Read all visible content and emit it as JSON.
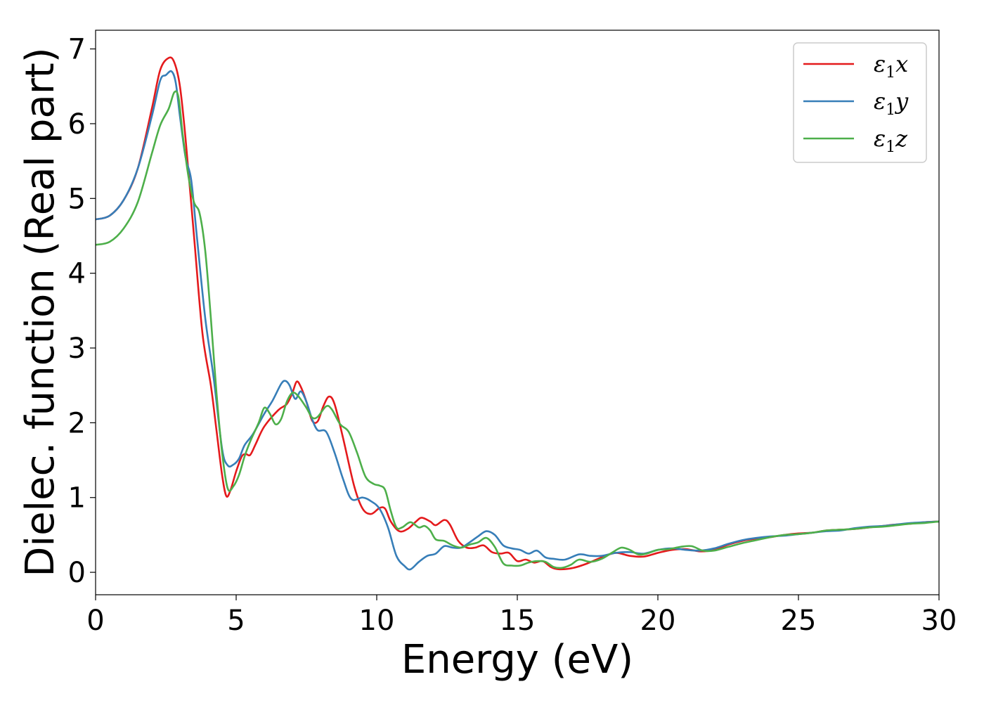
{
  "chart_data": {
    "type": "line",
    "title": "",
    "xlabel": "Energy (eV)",
    "ylabel": "Dielec. function (Real part)",
    "xlim": [
      0,
      30
    ],
    "ylim": [
      -0.3,
      7.25
    ],
    "xticks": [
      0,
      5,
      10,
      15,
      20,
      25,
      30
    ],
    "yticks": [
      0,
      1,
      2,
      3,
      4,
      5,
      6,
      7
    ],
    "grid": false,
    "legend_position": "top-right",
    "series": [
      {
        "name": "ε1x",
        "legend_base": "ε",
        "legend_sub": "1",
        "legend_var": "x",
        "color": "#e41a1c",
        "points": [
          [
            0,
            4.72
          ],
          [
            0.5,
            4.77
          ],
          [
            1,
            4.98
          ],
          [
            1.5,
            5.4
          ],
          [
            2,
            6.2
          ],
          [
            2.3,
            6.72
          ],
          [
            2.6,
            6.88
          ],
          [
            2.8,
            6.82
          ],
          [
            3,
            6.5
          ],
          [
            3.2,
            5.8
          ],
          [
            3.5,
            4.5
          ],
          [
            3.8,
            3.2
          ],
          [
            4.1,
            2.5
          ],
          [
            4.3,
            1.9
          ],
          [
            4.5,
            1.3
          ],
          [
            4.65,
            1.02
          ],
          [
            4.8,
            1.1
          ],
          [
            5,
            1.35
          ],
          [
            5.2,
            1.55
          ],
          [
            5.35,
            1.58
          ],
          [
            5.5,
            1.57
          ],
          [
            5.7,
            1.72
          ],
          [
            6,
            1.95
          ],
          [
            6.5,
            2.17
          ],
          [
            6.8,
            2.25
          ],
          [
            7,
            2.4
          ],
          [
            7.15,
            2.55
          ],
          [
            7.3,
            2.48
          ],
          [
            7.5,
            2.28
          ],
          [
            7.7,
            2.03
          ],
          [
            7.9,
            2.02
          ],
          [
            8.1,
            2.22
          ],
          [
            8.3,
            2.35
          ],
          [
            8.5,
            2.25
          ],
          [
            8.8,
            1.8
          ],
          [
            9.2,
            1.15
          ],
          [
            9.5,
            0.85
          ],
          [
            9.8,
            0.78
          ],
          [
            10.1,
            0.86
          ],
          [
            10.3,
            0.85
          ],
          [
            10.5,
            0.68
          ],
          [
            10.8,
            0.55
          ],
          [
            11.1,
            0.58
          ],
          [
            11.4,
            0.68
          ],
          [
            11.6,
            0.73
          ],
          [
            11.9,
            0.68
          ],
          [
            12.1,
            0.63
          ],
          [
            12.4,
            0.7
          ],
          [
            12.6,
            0.64
          ],
          [
            12.9,
            0.42
          ],
          [
            13.2,
            0.33
          ],
          [
            13.5,
            0.33
          ],
          [
            13.8,
            0.36
          ],
          [
            14.1,
            0.27
          ],
          [
            14.4,
            0.25
          ],
          [
            14.7,
            0.26
          ],
          [
            15,
            0.15
          ],
          [
            15.3,
            0.17
          ],
          [
            15.6,
            0.13
          ],
          [
            15.9,
            0.15
          ],
          [
            16.2,
            0.07
          ],
          [
            16.5,
            0.04
          ],
          [
            17,
            0.06
          ],
          [
            17.5,
            0.12
          ],
          [
            18,
            0.2
          ],
          [
            18.5,
            0.26
          ],
          [
            19,
            0.22
          ],
          [
            19.5,
            0.21
          ],
          [
            20,
            0.26
          ],
          [
            20.5,
            0.3
          ],
          [
            21,
            0.31
          ],
          [
            21.5,
            0.28
          ],
          [
            22,
            0.3
          ],
          [
            22.5,
            0.37
          ],
          [
            23,
            0.42
          ],
          [
            23.5,
            0.45
          ],
          [
            24,
            0.47
          ],
          [
            24.5,
            0.5
          ],
          [
            25,
            0.52
          ],
          [
            25.5,
            0.53
          ],
          [
            26,
            0.56
          ],
          [
            26.5,
            0.57
          ],
          [
            27,
            0.58
          ],
          [
            27.5,
            0.6
          ],
          [
            28,
            0.62
          ],
          [
            28.5,
            0.64
          ],
          [
            29,
            0.65
          ],
          [
            29.5,
            0.67
          ],
          [
            30,
            0.68
          ]
        ]
      },
      {
        "name": "ε1y",
        "legend_base": "ε",
        "legend_sub": "1",
        "legend_var": "y",
        "color": "#377eb8",
        "points": [
          [
            0,
            4.72
          ],
          [
            0.5,
            4.77
          ],
          [
            1,
            4.98
          ],
          [
            1.5,
            5.4
          ],
          [
            2,
            6.1
          ],
          [
            2.3,
            6.58
          ],
          [
            2.5,
            6.65
          ],
          [
            2.7,
            6.7
          ],
          [
            2.85,
            6.55
          ],
          [
            3,
            6.1
          ],
          [
            3.2,
            5.55
          ],
          [
            3.4,
            5.25
          ],
          [
            3.6,
            4.5
          ],
          [
            3.9,
            3.4
          ],
          [
            4.2,
            2.6
          ],
          [
            4.5,
            1.65
          ],
          [
            4.7,
            1.43
          ],
          [
            4.9,
            1.44
          ],
          [
            5.1,
            1.52
          ],
          [
            5.3,
            1.7
          ],
          [
            5.6,
            1.85
          ],
          [
            6,
            2.12
          ],
          [
            6.3,
            2.3
          ],
          [
            6.6,
            2.52
          ],
          [
            6.75,
            2.56
          ],
          [
            6.9,
            2.5
          ],
          [
            7.1,
            2.32
          ],
          [
            7.3,
            2.42
          ],
          [
            7.5,
            2.28
          ],
          [
            7.7,
            2.05
          ],
          [
            7.9,
            1.9
          ],
          [
            8.2,
            1.88
          ],
          [
            8.5,
            1.6
          ],
          [
            8.8,
            1.25
          ],
          [
            9.1,
            0.98
          ],
          [
            9.5,
            1.0
          ],
          [
            9.8,
            0.95
          ],
          [
            10.1,
            0.85
          ],
          [
            10.4,
            0.6
          ],
          [
            10.7,
            0.22
          ],
          [
            11,
            0.08
          ],
          [
            11.2,
            0.04
          ],
          [
            11.5,
            0.14
          ],
          [
            11.8,
            0.22
          ],
          [
            12.1,
            0.25
          ],
          [
            12.4,
            0.35
          ],
          [
            12.7,
            0.33
          ],
          [
            13,
            0.33
          ],
          [
            13.3,
            0.4
          ],
          [
            13.6,
            0.48
          ],
          [
            13.9,
            0.55
          ],
          [
            14.2,
            0.5
          ],
          [
            14.5,
            0.36
          ],
          [
            14.8,
            0.32
          ],
          [
            15.1,
            0.3
          ],
          [
            15.4,
            0.25
          ],
          [
            15.7,
            0.29
          ],
          [
            16,
            0.2
          ],
          [
            16.3,
            0.18
          ],
          [
            16.7,
            0.17
          ],
          [
            17.2,
            0.24
          ],
          [
            17.6,
            0.22
          ],
          [
            18,
            0.22
          ],
          [
            18.5,
            0.26
          ],
          [
            19,
            0.27
          ],
          [
            19.5,
            0.25
          ],
          [
            20,
            0.3
          ],
          [
            20.5,
            0.32
          ],
          [
            21,
            0.3
          ],
          [
            21.5,
            0.29
          ],
          [
            22,
            0.32
          ],
          [
            22.5,
            0.38
          ],
          [
            23,
            0.43
          ],
          [
            23.5,
            0.46
          ],
          [
            24,
            0.48
          ],
          [
            24.5,
            0.49
          ],
          [
            25,
            0.51
          ],
          [
            25.5,
            0.53
          ],
          [
            26,
            0.55
          ],
          [
            26.5,
            0.56
          ],
          [
            27,
            0.59
          ],
          [
            27.5,
            0.61
          ],
          [
            28,
            0.62
          ],
          [
            28.5,
            0.64
          ],
          [
            29,
            0.66
          ],
          [
            29.5,
            0.67
          ],
          [
            30,
            0.68
          ]
        ]
      },
      {
        "name": "ε1z",
        "legend_base": "ε",
        "legend_sub": "1",
        "legend_var": "z",
        "color": "#4daf4a",
        "points": [
          [
            0,
            4.38
          ],
          [
            0.5,
            4.42
          ],
          [
            1,
            4.6
          ],
          [
            1.5,
            4.95
          ],
          [
            2,
            5.6
          ],
          [
            2.3,
            5.98
          ],
          [
            2.6,
            6.2
          ],
          [
            2.8,
            6.42
          ],
          [
            2.95,
            6.35
          ],
          [
            3.1,
            5.85
          ],
          [
            3.3,
            5.3
          ],
          [
            3.5,
            4.95
          ],
          [
            3.7,
            4.8
          ],
          [
            3.9,
            4.3
          ],
          [
            4.1,
            3.4
          ],
          [
            4.3,
            2.4
          ],
          [
            4.5,
            1.6
          ],
          [
            4.7,
            1.12
          ],
          [
            4.9,
            1.15
          ],
          [
            5.1,
            1.3
          ],
          [
            5.3,
            1.55
          ],
          [
            5.5,
            1.75
          ],
          [
            5.8,
            2.0
          ],
          [
            6,
            2.2
          ],
          [
            6.2,
            2.12
          ],
          [
            6.4,
            1.98
          ],
          [
            6.6,
            2.05
          ],
          [
            6.8,
            2.28
          ],
          [
            7,
            2.4
          ],
          [
            7.2,
            2.36
          ],
          [
            7.5,
            2.2
          ],
          [
            7.7,
            2.07
          ],
          [
            7.9,
            2.08
          ],
          [
            8.2,
            2.22
          ],
          [
            8.4,
            2.18
          ],
          [
            8.7,
            1.98
          ],
          [
            9,
            1.88
          ],
          [
            9.3,
            1.6
          ],
          [
            9.6,
            1.28
          ],
          [
            9.9,
            1.18
          ],
          [
            10.1,
            1.16
          ],
          [
            10.3,
            1.1
          ],
          [
            10.5,
            0.82
          ],
          [
            10.7,
            0.6
          ],
          [
            10.9,
            0.6
          ],
          [
            11.2,
            0.67
          ],
          [
            11.5,
            0.6
          ],
          [
            11.7,
            0.62
          ],
          [
            11.9,
            0.56
          ],
          [
            12.1,
            0.44
          ],
          [
            12.4,
            0.42
          ],
          [
            12.7,
            0.36
          ],
          [
            13,
            0.33
          ],
          [
            13.3,
            0.37
          ],
          [
            13.6,
            0.4
          ],
          [
            13.9,
            0.46
          ],
          [
            14.2,
            0.34
          ],
          [
            14.5,
            0.12
          ],
          [
            14.8,
            0.09
          ],
          [
            15.1,
            0.09
          ],
          [
            15.4,
            0.13
          ],
          [
            15.7,
            0.15
          ],
          [
            16,
            0.14
          ],
          [
            16.3,
            0.07
          ],
          [
            16.6,
            0.06
          ],
          [
            16.9,
            0.1
          ],
          [
            17.2,
            0.17
          ],
          [
            17.6,
            0.14
          ],
          [
            18,
            0.18
          ],
          [
            18.4,
            0.27
          ],
          [
            18.7,
            0.33
          ],
          [
            19,
            0.3
          ],
          [
            19.3,
            0.24
          ],
          [
            19.6,
            0.25
          ],
          [
            20,
            0.3
          ],
          [
            20.4,
            0.31
          ],
          [
            20.8,
            0.34
          ],
          [
            21.2,
            0.35
          ],
          [
            21.6,
            0.29
          ],
          [
            22,
            0.29
          ],
          [
            22.5,
            0.34
          ],
          [
            23,
            0.39
          ],
          [
            23.5,
            0.43
          ],
          [
            24,
            0.47
          ],
          [
            24.5,
            0.5
          ],
          [
            25,
            0.51
          ],
          [
            25.5,
            0.53
          ],
          [
            26,
            0.56
          ],
          [
            26.5,
            0.57
          ],
          [
            27,
            0.58
          ],
          [
            27.5,
            0.6
          ],
          [
            28,
            0.61
          ],
          [
            28.5,
            0.63
          ],
          [
            29,
            0.65
          ],
          [
            29.5,
            0.66
          ],
          [
            30,
            0.68
          ]
        ]
      }
    ]
  }
}
